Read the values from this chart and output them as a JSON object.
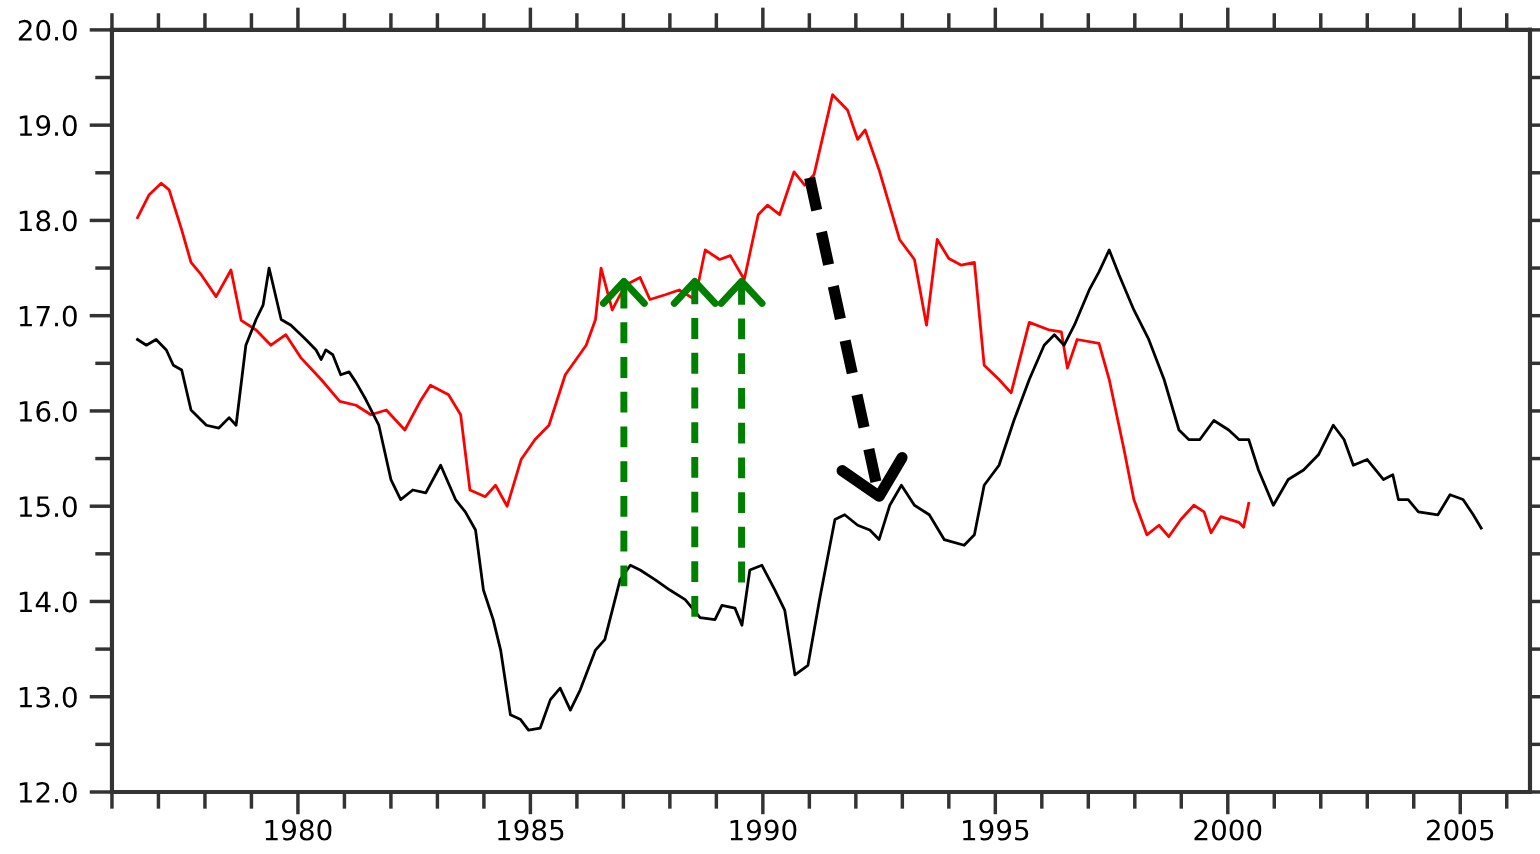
{
  "chart_data": {
    "type": "line",
    "xlim": [
      1976,
      2006.5
    ],
    "ylim": [
      12,
      20
    ],
    "xticks": [
      1980,
      1985,
      1990,
      1995,
      2000,
      2005
    ],
    "yticks": [
      {
        "value": 12,
        "label": "12.0"
      },
      {
        "value": 13,
        "label": "13.0"
      },
      {
        "value": 14,
        "label": "14.0"
      },
      {
        "value": 15,
        "label": "15.0"
      },
      {
        "value": 16,
        "label": "16.0"
      },
      {
        "value": 17,
        "label": "17.0"
      },
      {
        "value": 18,
        "label": "18.0"
      },
      {
        "value": 19,
        "label": "19.0"
      },
      {
        "value": 20,
        "label": "20.0"
      }
    ],
    "grid": false,
    "series": [
      {
        "color": "#ff0000",
        "x": [
          1976.55,
          1976.8,
          1977.06,
          1977.23,
          1977.5,
          1977.7,
          1977.92,
          1978.24,
          1978.56,
          1978.78,
          1979.1,
          1979.42,
          1979.74,
          1980.06,
          1980.5,
          1980.9,
          1981.25,
          1981.57,
          1981.9,
          1982.3,
          1982.64,
          1982.85,
          1983.24,
          1983.5,
          1983.7,
          1984.03,
          1984.25,
          1984.5,
          1984.8,
          1985.1,
          1985.4,
          1985.75,
          1986.2,
          1986.4,
          1986.52,
          1986.76,
          1987.04,
          1987.36,
          1987.57,
          1987.9,
          1988.2,
          1988.54,
          1988.76,
          1989.07,
          1989.3,
          1989.6,
          1989.9,
          1990.1,
          1990.36,
          1990.67,
          1990.9,
          1991.1,
          1991.5,
          1991.82,
          1992.04,
          1992.2,
          1992.5,
          1992.94,
          1993.26,
          1993.52,
          1993.75,
          1994.0,
          1994.27,
          1994.55,
          1994.76,
          1995.08,
          1995.34,
          1995.73,
          1996.16,
          1996.42,
          1996.55,
          1996.76,
          1997.23,
          1997.45,
          1997.77,
          1997.98,
          1998.26,
          1998.52,
          1998.73,
          1998.99,
          1999.27,
          1999.49,
          1999.64,
          1999.85,
          2000.24,
          2000.34,
          2000.45
        ],
        "values": [
          18.03,
          18.27,
          18.39,
          18.32,
          17.9,
          17.56,
          17.43,
          17.2,
          17.48,
          16.95,
          16.85,
          16.69,
          16.8,
          16.56,
          16.33,
          16.1,
          16.06,
          15.96,
          16.01,
          15.8,
          16.11,
          16.27,
          16.17,
          15.96,
          15.17,
          15.1,
          15.22,
          15.0,
          15.49,
          15.7,
          15.85,
          16.38,
          16.69,
          16.96,
          17.5,
          17.06,
          17.32,
          17.4,
          17.17,
          17.22,
          17.27,
          17.17,
          17.69,
          17.59,
          17.63,
          17.38,
          18.06,
          18.16,
          18.06,
          18.51,
          18.37,
          18.48,
          19.32,
          19.16,
          18.85,
          18.95,
          18.53,
          17.8,
          17.59,
          16.9,
          17.8,
          17.6,
          17.53,
          17.56,
          16.48,
          16.33,
          16.19,
          16.93,
          16.85,
          16.83,
          16.45,
          16.75,
          16.71,
          16.33,
          15.59,
          15.07,
          14.7,
          14.8,
          14.68,
          14.86,
          15.01,
          14.94,
          14.72,
          14.89,
          14.83,
          14.78,
          15.03
        ]
      },
      {
        "color": "#000000",
        "x": [
          1976.55,
          1976.74,
          1976.95,
          1977.17,
          1977.32,
          1977.5,
          1977.7,
          1978.03,
          1978.3,
          1978.52,
          1978.67,
          1978.88,
          1979.1,
          1979.25,
          1979.38,
          1979.64,
          1979.85,
          1980.17,
          1980.39,
          1980.5,
          1980.6,
          1980.75,
          1980.92,
          1981.1,
          1981.25,
          1981.46,
          1981.74,
          1982.0,
          1982.21,
          1982.47,
          1982.75,
          1983.07,
          1983.39,
          1983.6,
          1983.82,
          1983.99,
          1984.2,
          1984.36,
          1984.57,
          1984.79,
          1984.96,
          1985.21,
          1985.43,
          1985.64,
          1985.86,
          1986.07,
          1986.4,
          1986.6,
          1986.93,
          1987.15,
          1987.36,
          1987.68,
          1988.0,
          1988.33,
          1988.65,
          1988.97,
          1989.12,
          1989.4,
          1989.55,
          1989.72,
          1989.98,
          1990.26,
          1990.47,
          1990.69,
          1990.97,
          1991.22,
          1991.55,
          1991.76,
          1992.04,
          1992.3,
          1992.5,
          1992.73,
          1992.98,
          1993.26,
          1993.58,
          1993.9,
          1994.33,
          1994.55,
          1994.76,
          1995.08,
          1995.4,
          1995.73,
          1996.05,
          1996.27,
          1996.48,
          1996.7,
          1997.02,
          1997.23,
          1997.45,
          1997.66,
          1997.98,
          1998.3,
          1998.63,
          1998.95,
          1999.16,
          1999.4,
          1999.7,
          2000.02,
          2000.24,
          2000.45,
          2000.66,
          2000.98,
          2001.3,
          2001.63,
          2001.95,
          2002.27,
          2002.5,
          2002.7,
          2003.0,
          2003.35,
          2003.55,
          2003.67,
          2003.88,
          2004.1,
          2004.52,
          2004.78,
          2005.06,
          2005.28,
          2005.45
        ],
        "values": [
          16.75,
          16.69,
          16.75,
          16.64,
          16.48,
          16.43,
          16.01,
          15.85,
          15.82,
          15.93,
          15.85,
          16.69,
          16.96,
          17.11,
          17.5,
          16.96,
          16.9,
          16.75,
          16.64,
          16.54,
          16.64,
          16.59,
          16.38,
          16.41,
          16.3,
          16.12,
          15.85,
          15.28,
          15.07,
          15.17,
          15.14,
          15.43,
          15.07,
          14.94,
          14.75,
          14.12,
          13.81,
          13.49,
          12.81,
          12.76,
          12.65,
          12.67,
          12.97,
          13.09,
          12.86,
          13.07,
          13.49,
          13.6,
          14.23,
          14.38,
          14.33,
          14.23,
          14.12,
          14.02,
          13.83,
          13.81,
          13.96,
          13.93,
          13.75,
          14.33,
          14.38,
          14.12,
          13.91,
          13.23,
          13.33,
          14.02,
          14.86,
          14.91,
          14.8,
          14.75,
          14.65,
          15.01,
          15.22,
          15.01,
          14.91,
          14.65,
          14.59,
          14.7,
          15.22,
          15.43,
          15.9,
          16.33,
          16.69,
          16.8,
          16.69,
          16.9,
          17.27,
          17.46,
          17.69,
          17.43,
          17.06,
          16.75,
          16.33,
          15.8,
          15.7,
          15.7,
          15.9,
          15.8,
          15.7,
          15.7,
          15.38,
          15.01,
          15.28,
          15.38,
          15.54,
          15.85,
          15.7,
          15.43,
          15.49,
          15.28,
          15.33,
          15.07,
          15.07,
          14.94,
          14.91,
          15.12,
          15.07,
          14.91,
          14.77
        ]
      }
    ]
  }
}
